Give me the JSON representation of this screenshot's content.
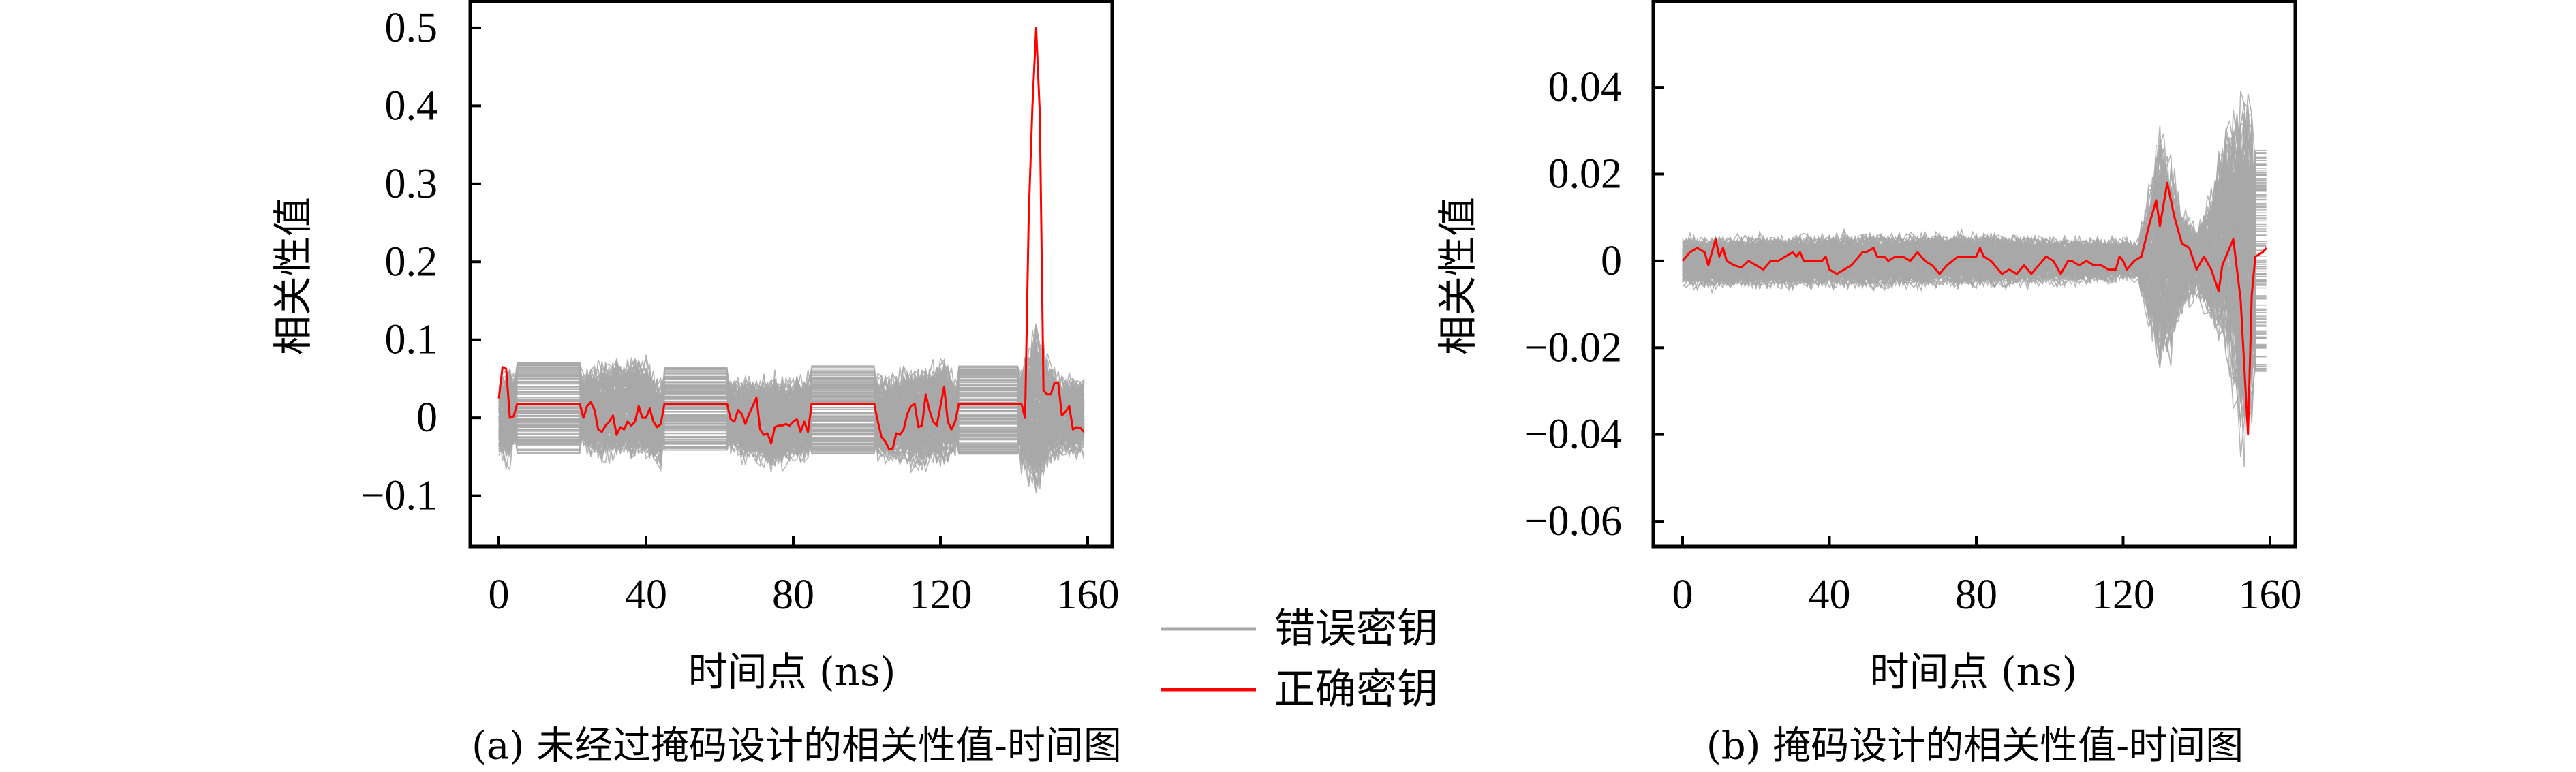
{
  "legend": {
    "placement": "between-panels",
    "items": [
      {
        "label": "错误密钥",
        "color": "#a8a8a8"
      },
      {
        "label": "正确密钥",
        "color": "#ff0000"
      }
    ]
  },
  "chart_data": [
    {
      "type": "line",
      "caption": "(a) 未经过掩码设计的相关性值-时间图",
      "xlabel": "时间点 (ns)",
      "ylabel": "相关性值",
      "xlim": [
        -8,
        167
      ],
      "ylim": [
        -0.165,
        0.534
      ],
      "grid": false,
      "x_ticks": [
        0,
        40,
        80,
        120,
        160
      ],
      "x_tick_labels": [
        "0",
        "40",
        "80",
        "120",
        "160"
      ],
      "y_ticks": [
        -0.1,
        0,
        0.1,
        0.2,
        0.3,
        0.4,
        0.5
      ],
      "y_tick_labels": [
        "−0.1",
        "0",
        "0.1",
        "0.2",
        "0.3",
        "0.4",
        "0.5"
      ],
      "series": [
        {
          "name": "错误密钥",
          "color": "#a8a8a8",
          "flat_segments": [
            [
              5,
              22
            ],
            [
              45,
              62
            ],
            [
              85,
              102
            ],
            [
              125,
              141
            ]
          ],
          "envelope": [
            [
              0,
              -0.06,
              0.06
            ],
            [
              3,
              -0.08,
              0.09
            ],
            [
              4,
              -0.06,
              0.07
            ],
            [
              5,
              -0.05,
              0.075
            ],
            [
              22,
              -0.05,
              0.075
            ],
            [
              23,
              -0.05,
              0.07
            ],
            [
              25,
              -0.07,
              0.085
            ],
            [
              40,
              -0.075,
              0.1
            ],
            [
              44,
              -0.085,
              0.06
            ],
            [
              45,
              -0.045,
              0.068
            ],
            [
              62,
              -0.045,
              0.068
            ],
            [
              63,
              -0.06,
              0.065
            ],
            [
              75,
              -0.085,
              0.07
            ],
            [
              84,
              -0.07,
              0.07
            ],
            [
              85,
              -0.05,
              0.07
            ],
            [
              102,
              -0.05,
              0.07
            ],
            [
              103,
              -0.07,
              0.07
            ],
            [
              115,
              -0.085,
              0.085
            ],
            [
              121,
              -0.085,
              0.1
            ],
            [
              124,
              -0.06,
              0.06
            ],
            [
              125,
              -0.05,
              0.073
            ],
            [
              141,
              -0.05,
              0.073
            ],
            [
              142,
              -0.08,
              0.09
            ],
            [
              146,
              -0.13,
              0.155
            ],
            [
              149,
              -0.09,
              0.1
            ],
            [
              152,
              -0.07,
              0.07
            ],
            [
              159,
              -0.06,
              0.065
            ]
          ]
        },
        {
          "name": "正确密钥",
          "color": "#ff0000",
          "points": [
            [
              0,
              0.025
            ],
            [
              1,
              0.065
            ],
            [
              2,
              0.063
            ],
            [
              3,
              0.0
            ],
            [
              4,
              0.002
            ],
            [
              5,
              0.018
            ],
            [
              22,
              0.018
            ],
            [
              23,
              0.0
            ],
            [
              24,
              0.015
            ],
            [
              25,
              0.02
            ],
            [
              26,
              0.01
            ],
            [
              27,
              -0.015
            ],
            [
              28,
              -0.018
            ],
            [
              29,
              -0.01
            ],
            [
              30,
              -0.005
            ],
            [
              31,
              0.003
            ],
            [
              32,
              -0.022
            ],
            [
              33,
              -0.012
            ],
            [
              34,
              -0.015
            ],
            [
              35,
              -0.005
            ],
            [
              36,
              -0.01
            ],
            [
              37,
              -0.005
            ],
            [
              38,
              0.015
            ],
            [
              39,
              0.0
            ],
            [
              40,
              0.0
            ],
            [
              41,
              0.012
            ],
            [
              42,
              -0.005
            ],
            [
              43,
              -0.012
            ],
            [
              44,
              -0.008
            ],
            [
              45,
              0.018
            ],
            [
              62,
              0.018
            ],
            [
              63,
              -0.002
            ],
            [
              64,
              -0.005
            ],
            [
              65,
              0.01
            ],
            [
              66,
              0.005
            ],
            [
              67,
              -0.008
            ],
            [
              68,
              0.005
            ],
            [
              69,
              0.015
            ],
            [
              70,
              0.026
            ],
            [
              71,
              -0.015
            ],
            [
              72,
              -0.022
            ],
            [
              73,
              -0.02
            ],
            [
              74,
              -0.033
            ],
            [
              75,
              -0.012
            ],
            [
              76,
              -0.01
            ],
            [
              77,
              -0.01
            ],
            [
              78,
              -0.008
            ],
            [
              79,
              -0.01
            ],
            [
              80,
              -0.005
            ],
            [
              81,
              -0.002
            ],
            [
              82,
              -0.018
            ],
            [
              83,
              -0.005
            ],
            [
              84,
              -0.018
            ],
            [
              85,
              0.018
            ],
            [
              102,
              0.018
            ],
            [
              103,
              -0.005
            ],
            [
              104,
              -0.025
            ],
            [
              105,
              -0.03
            ],
            [
              106,
              -0.04
            ],
            [
              107,
              -0.04
            ],
            [
              108,
              -0.02
            ],
            [
              109,
              -0.022
            ],
            [
              110,
              -0.015
            ],
            [
              111,
              0.005
            ],
            [
              112,
              0.015
            ],
            [
              113,
              0.018
            ],
            [
              114,
              -0.012
            ],
            [
              115,
              -0.01
            ],
            [
              116,
              0.03
            ],
            [
              117,
              0.01
            ],
            [
              118,
              -0.005
            ],
            [
              119,
              -0.01
            ],
            [
              120,
              0.015
            ],
            [
              121,
              0.04
            ],
            [
              122,
              -0.005
            ],
            [
              123,
              -0.015
            ],
            [
              124,
              -0.005
            ],
            [
              125,
              0.018
            ],
            [
              142,
              0.018
            ],
            [
              143,
              0.0
            ],
            [
              144,
              0.26
            ],
            [
              145,
              0.4
            ],
            [
              146,
              0.5
            ],
            [
              147,
              0.39
            ],
            [
              148,
              0.035
            ],
            [
              149,
              0.03
            ],
            [
              150,
              0.03
            ],
            [
              151,
              0.045
            ],
            [
              152,
              0.045
            ],
            [
              153,
              0.003
            ],
            [
              154,
              0.008
            ],
            [
              155,
              0.015
            ],
            [
              156,
              -0.015
            ],
            [
              157,
              -0.012
            ],
            [
              158,
              -0.013
            ],
            [
              159,
              -0.018
            ]
          ]
        }
      ]
    },
    {
      "type": "line",
      "caption": "(b) 掩码设计的相关性值-时间图",
      "xlabel": "时间点 (ns)",
      "ylabel": "相关性值",
      "xlim": [
        -6.9,
        157
      ],
      "ylim": [
        -0.0658,
        0.0598
      ],
      "grid": false,
      "x_ticks": [
        0,
        40,
        80,
        120,
        160
      ],
      "x_tick_labels": [
        "0",
        "40",
        "80",
        "120",
        "160"
      ],
      "y_ticks": [
        -0.06,
        -0.04,
        -0.02,
        0,
        0.02,
        0.04
      ],
      "y_tick_labels": [
        "−0.06",
        "−0.04",
        "−0.02",
        "0",
        "0.02",
        "0.04"
      ],
      "series": [
        {
          "name": "错误密钥",
          "color": "#a8a8a8",
          "flat_segments": [
            [
              156,
              159
            ]
          ],
          "envelope": [
            [
              0,
              -0.008,
              0.007
            ],
            [
              40,
              -0.008,
              0.008
            ],
            [
              80,
              -0.008,
              0.008
            ],
            [
              124,
              -0.006,
              0.006
            ],
            [
              127,
              -0.02,
              0.02
            ],
            [
              130,
              -0.037,
              0.041
            ],
            [
              133,
              -0.03,
              0.03
            ],
            [
              136,
              -0.015,
              0.015
            ],
            [
              140,
              -0.01,
              0.01
            ],
            [
              144,
              -0.02,
              0.02
            ],
            [
              148,
              -0.03,
              0.04
            ],
            [
              153,
              -0.06,
              0.054
            ],
            [
              155,
              -0.05,
              0.045
            ],
            [
              156,
              -0.027,
              0.027
            ],
            [
              159,
              -0.027,
              0.027
            ]
          ]
        },
        {
          "name": "正确密钥",
          "color": "#ff0000",
          "points": [
            [
              0,
              0.0
            ],
            [
              2,
              0.002
            ],
            [
              4,
              0.003
            ],
            [
              6,
              0.002
            ],
            [
              7,
              -0.001
            ],
            [
              9,
              0.005
            ],
            [
              10,
              0.001
            ],
            [
              11,
              0.003
            ],
            [
              12,
              0.0
            ],
            [
              14,
              -0.001
            ],
            [
              16,
              -0.0015
            ],
            [
              18,
              0.0
            ],
            [
              20,
              -0.001
            ],
            [
              22,
              -0.002
            ],
            [
              24,
              0.0
            ],
            [
              26,
              0.0
            ],
            [
              28,
              0.001
            ],
            [
              30,
              0.002
            ],
            [
              31,
              0.001
            ],
            [
              32,
              0.002
            ],
            [
              33,
              0.0
            ],
            [
              36,
              0.0
            ],
            [
              38,
              0.0
            ],
            [
              39,
              0.001
            ],
            [
              40,
              -0.002
            ],
            [
              42,
              -0.003
            ],
            [
              44,
              -0.002
            ],
            [
              46,
              -0.001
            ],
            [
              49,
              0.002
            ],
            [
              50,
              0.002
            ],
            [
              52,
              0.003
            ],
            [
              53,
              0.001
            ],
            [
              55,
              0.001
            ],
            [
              56,
              0.0
            ],
            [
              58,
              0.001
            ],
            [
              60,
              0.001
            ],
            [
              62,
              0.0
            ],
            [
              64,
              0.002
            ],
            [
              66,
              0.0
            ],
            [
              68,
              -0.001
            ],
            [
              70,
              -0.003
            ],
            [
              72,
              -0.001
            ],
            [
              75,
              0.001
            ],
            [
              78,
              0.001
            ],
            [
              80,
              0.001
            ],
            [
              81,
              0.003
            ],
            [
              82,
              0.001
            ],
            [
              84,
              0.0
            ],
            [
              87,
              -0.003
            ],
            [
              89,
              -0.002
            ],
            [
              91,
              -0.003
            ],
            [
              93,
              -0.001
            ],
            [
              95,
              -0.003
            ],
            [
              97,
              -0.001
            ],
            [
              99,
              0.001
            ],
            [
              101,
              0.0
            ],
            [
              103,
              -0.003
            ],
            [
              105,
              0.0
            ],
            [
              106,
              0.0
            ],
            [
              108,
              -0.001
            ],
            [
              110,
              0.0
            ],
            [
              112,
              -0.001
            ],
            [
              114,
              -0.001
            ],
            [
              116,
              -0.002
            ],
            [
              118,
              -0.002
            ],
            [
              119,
              0.001
            ],
            [
              120,
              0.0
            ],
            [
              121,
              -0.002
            ],
            [
              123,
              0.0
            ],
            [
              125,
              0.001
            ],
            [
              127,
              0.008
            ],
            [
              129,
              0.014
            ],
            [
              130,
              0.008
            ],
            [
              132,
              0.018
            ],
            [
              134,
              0.01
            ],
            [
              136,
              0.004
            ],
            [
              138,
              0.003
            ],
            [
              140,
              -0.002
            ],
            [
              142,
              0.001
            ],
            [
              144,
              -0.002
            ],
            [
              146,
              -0.007
            ],
            [
              147,
              -0.001
            ],
            [
              150,
              0.005
            ],
            [
              152,
              -0.009
            ],
            [
              154,
              -0.04
            ],
            [
              155,
              -0.008
            ],
            [
              156,
              0.001
            ],
            [
              158,
              0.002
            ],
            [
              159,
              0.003
            ]
          ]
        }
      ]
    }
  ]
}
